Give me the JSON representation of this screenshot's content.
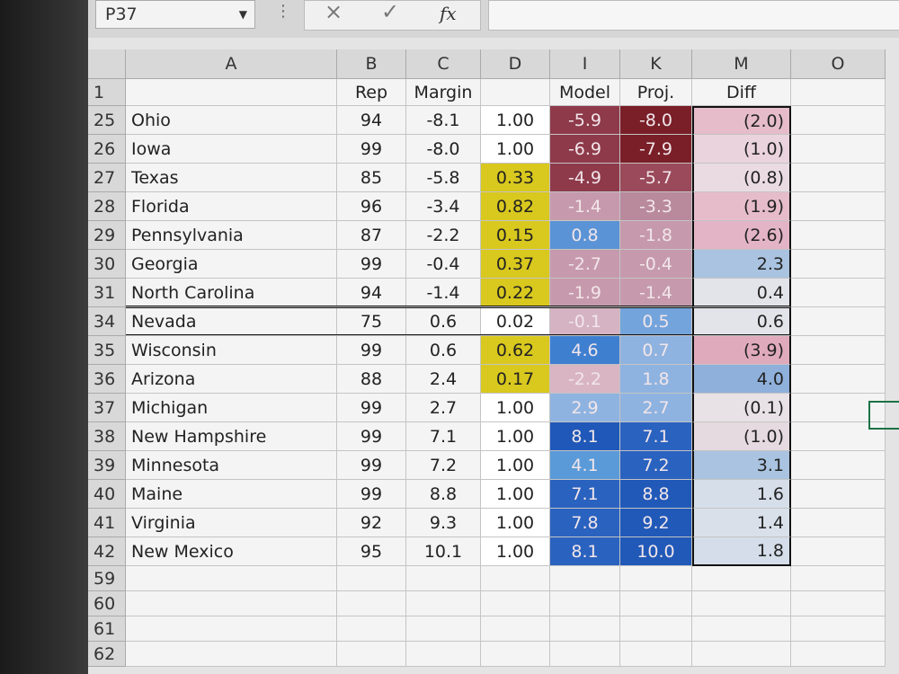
{
  "formula_bar": {
    "name_box": "P37",
    "cancel_icon": "×",
    "enter_icon": "✓",
    "fx_icon": "fx"
  },
  "columns": [
    "A",
    "B",
    "C",
    "D",
    "I",
    "K",
    "M",
    "O"
  ],
  "header_row": {
    "row": "1",
    "A": "",
    "B": "Rep",
    "C": "Margin",
    "D": "",
    "I": "Model",
    "K": "Proj.",
    "M": "Diff"
  },
  "rows": [
    {
      "row": "25",
      "state": "Ohio",
      "rep": "94",
      "margin": "-8.1",
      "d": "1.00",
      "model": "-5.9",
      "proj": "-8.0",
      "diff": "(2.0)",
      "d_color": "#ffffff",
      "model_color": "#8e3a4a",
      "proj_color": "#7a1f28",
      "diff_color": "#e6bcca"
    },
    {
      "row": "26",
      "state": "Iowa",
      "rep": "99",
      "margin": "-8.0",
      "d": "1.00",
      "model": "-6.9",
      "proj": "-7.9",
      "diff": "(1.0)",
      "d_color": "#ffffff",
      "model_color": "#8e3a4a",
      "proj_color": "#7a1f28",
      "diff_color": "#ead3dc"
    },
    {
      "row": "27",
      "state": "Texas",
      "rep": "85",
      "margin": "-5.8",
      "d": "0.33",
      "model": "-4.9",
      "proj": "-5.7",
      "diff": "(0.8)",
      "d_color": "#d9c81e",
      "model_color": "#8e3a4a",
      "proj_color": "#9a4a5a",
      "diff_color": "#eadbe2"
    },
    {
      "row": "28",
      "state": "Florida",
      "rep": "96",
      "margin": "-3.4",
      "d": "0.82",
      "model": "-1.4",
      "proj": "-3.3",
      "diff": "(1.9)",
      "d_color": "#d9c81e",
      "model_color": "#c69aac",
      "proj_color": "#b9899c",
      "diff_color": "#e6bccb"
    },
    {
      "row": "29",
      "state": "Pennsylvania",
      "rep": "87",
      "margin": "-2.2",
      "d": "0.15",
      "model": "0.8",
      "proj": "-1.8",
      "diff": "(2.6)",
      "d_color": "#d9c81e",
      "model_color": "#5a93d6",
      "proj_color": "#c69aac",
      "diff_color": "#e3b4c5"
    },
    {
      "row": "30",
      "state": "Georgia",
      "rep": "99",
      "margin": "-0.4",
      "d": "0.37",
      "model": "-2.7",
      "proj": "-0.4",
      "diff": "2.3",
      "d_color": "#d9c81e",
      "model_color": "#c69aac",
      "proj_color": "#c69aac",
      "diff_color": "#a9c3e0"
    },
    {
      "row": "31",
      "state": "North Carolina",
      "rep": "94",
      "margin": "-1.4",
      "d": "0.22",
      "model": "-1.9",
      "proj": "-1.4",
      "diff": "0.4",
      "d_color": "#d9c81e",
      "model_color": "#c69aac",
      "proj_color": "#c69aac",
      "diff_color": "#e3e3ea"
    },
    {
      "row": "34",
      "state": "Nevada",
      "rep": "75",
      "margin": "0.6",
      "d": "0.02",
      "model": "-0.1",
      "proj": "0.5",
      "diff": "0.6",
      "d_color": "#ffffff",
      "model_color": "#d5b3c2",
      "proj_color": "#74a4dc",
      "diff_color": "#e3e3ea"
    },
    {
      "row": "35",
      "state": "Wisconsin",
      "rep": "99",
      "margin": "0.6",
      "d": "0.62",
      "model": "4.6",
      "proj": "0.7",
      "diff": "(3.9)",
      "d_color": "#d9c81e",
      "model_color": "#3f7fd0",
      "proj_color": "#8fb3e0",
      "diff_color": "#e0aabd"
    },
    {
      "row": "36",
      "state": "Arizona",
      "rep": "88",
      "margin": "2.4",
      "d": "0.17",
      "model": "-2.2",
      "proj": "1.8",
      "diff": "4.0",
      "d_color": "#d9c81e",
      "model_color": "#d9b5c4",
      "proj_color": "#8fb3e0",
      "diff_color": "#8fb0da"
    },
    {
      "row": "37",
      "state": "Michigan",
      "rep": "99",
      "margin": "2.7",
      "d": "1.00",
      "model": "2.9",
      "proj": "2.7",
      "diff": "(0.1)",
      "d_color": "#ffffff",
      "model_color": "#8fb3e0",
      "proj_color": "#8fb3e0",
      "diff_color": "#e8e2e6"
    },
    {
      "row": "38",
      "state": "New Hampshire",
      "rep": "99",
      "margin": "7.1",
      "d": "1.00",
      "model": "8.1",
      "proj": "7.1",
      "diff": "(1.0)",
      "d_color": "#ffffff",
      "model_color": "#1f58b8",
      "proj_color": "#2a62bf",
      "diff_color": "#e5dadf"
    },
    {
      "row": "39",
      "state": "Minnesota",
      "rep": "99",
      "margin": "7.2",
      "d": "1.00",
      "model": "4.1",
      "proj": "7.2",
      "diff": "3.1",
      "d_color": "#ffffff",
      "model_color": "#5a9ad8",
      "proj_color": "#2a62bf",
      "diff_color": "#a9c3e0"
    },
    {
      "row": "40",
      "state": "Maine",
      "rep": "99",
      "margin": "8.8",
      "d": "1.00",
      "model": "7.1",
      "proj": "8.8",
      "diff": "1.6",
      "d_color": "#ffffff",
      "model_color": "#2a62bf",
      "proj_color": "#2059b8",
      "diff_color": "#d6dee9"
    },
    {
      "row": "41",
      "state": "Virginia",
      "rep": "92",
      "margin": "9.3",
      "d": "1.00",
      "model": "7.8",
      "proj": "9.2",
      "diff": "1.4",
      "d_color": "#ffffff",
      "model_color": "#2a62bf",
      "proj_color": "#2059b8",
      "diff_color": "#d9e0ea"
    },
    {
      "row": "42",
      "state": "New Mexico",
      "rep": "95",
      "margin": "10.1",
      "d": "1.00",
      "model": "8.1",
      "proj": "10.0",
      "diff": "1.8",
      "d_color": "#ffffff",
      "model_color": "#2a62bf",
      "proj_color": "#2059b8",
      "diff_color": "#d4dde9"
    }
  ],
  "empty_rows": [
    "59",
    "60",
    "61",
    "62"
  ],
  "selected_cell": "P37"
}
